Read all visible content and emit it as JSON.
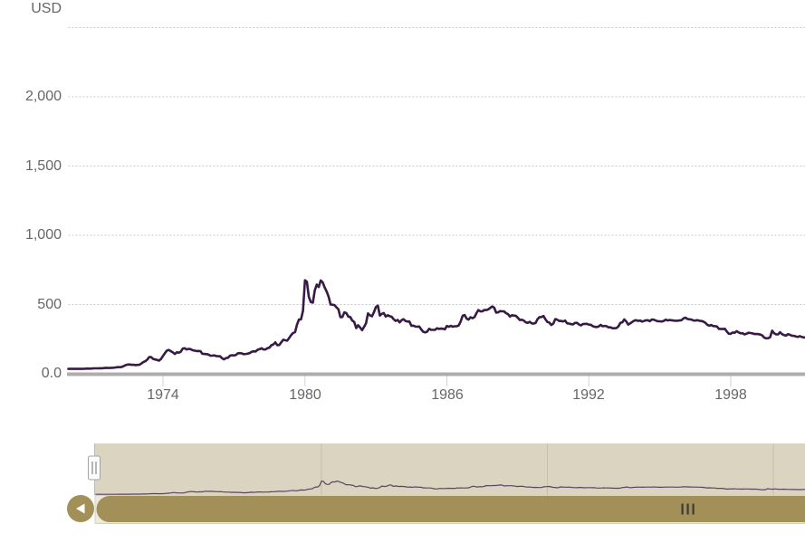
{
  "colors": {
    "series_line": "#381b45",
    "navigator_line": "#5d4263",
    "navigator_mask": "#dad4c0",
    "navigator_gridline": "#c6bfa9",
    "scrollbar_bar": "#a29058",
    "scrollbar_grip": "#3c3c30",
    "scrollbar_track": "#eceadd",
    "scrollbar_track_border": "#d6d2c0",
    "scrollbar_arrow": "#ffffff",
    "handle_fill": "#fcfcfc",
    "handle_border": "#a3a3a3",
    "handle_grip_bars": "#999999",
    "axis_label": "#666666",
    "gridline": "#c9c9c9",
    "zero_axis_line": "#adadad",
    "tick_mark": "#cdd5e0",
    "background": "#ffffff"
  },
  "chart_data": {
    "type": "line",
    "title": "",
    "ylabel": "USD",
    "xlabel": "",
    "legend": "none",
    "grid": "horizontal-dotted",
    "ylim": [
      0,
      2500
    ],
    "y_gridline_values": [
      2500,
      2000,
      1500,
      1000,
      500
    ],
    "y_tick_labels": [
      "2,000",
      "1,500",
      "1,000",
      "500",
      "0.0"
    ],
    "x_tick_years": [
      1974,
      1980,
      1986,
      1992,
      1998
    ],
    "x_tick_labels": [
      "1974",
      "1980",
      "1986",
      "1992",
      "1998"
    ],
    "x_start_year": 1970,
    "x_interval": "monthly",
    "visible_range_years": [
      1970,
      2001.2
    ],
    "series": [
      {
        "name": "USD",
        "start_year": 1970,
        "points_per_year": 12,
        "values": [
          35,
          35,
          35,
          36,
          35,
          35,
          35,
          35,
          36,
          37,
          37,
          37,
          38,
          39,
          39,
          39,
          40,
          40,
          41,
          43,
          42,
          42,
          43,
          44,
          46,
          48,
          48,
          49,
          55,
          62,
          66,
          67,
          65,
          65,
          63,
          64,
          65,
          74,
          84,
          90,
          102,
          120,
          120,
          107,
          103,
          100,
          95,
          107,
          129,
          150,
          168,
          172,
          163,
          154,
          143,
          155,
          152,
          159,
          182,
          184,
          176,
          180,
          178,
          170,
          167,
          164,
          165,
          163,
          144,
          143,
          142,
          139,
          131,
          131,
          133,
          128,
          127,
          126,
          112,
          104,
          114,
          116,
          131,
          134,
          132,
          136,
          148,
          149,
          147,
          141,
          143,
          145,
          150,
          159,
          162,
          161,
          173,
          178,
          184,
          175,
          176,
          184,
          189,
          206,
          212,
          227,
          206,
          208,
          227,
          246,
          242,
          239,
          258,
          279,
          295,
          301,
          355,
          392,
          392,
          455,
          675,
          665,
          554,
          517,
          514,
          601,
          644,
          627,
          674,
          661,
          624,
          595,
          557,
          500,
          499,
          496,
          480,
          465,
          409,
          410,
          444,
          438,
          413,
          410,
          384,
          374,
          330,
          350,
          334,
          315,
          339,
          364,
          436,
          422,
          415,
          444,
          481,
          492,
          420,
          433,
          438,
          413,
          423,
          416,
          412,
          394,
          382,
          389,
          371,
          386,
          394,
          381,
          377,
          378,
          347,
          348,
          341,
          340,
          341,
          320,
          303,
          299,
          304,
          325,
          317,
          317,
          317,
          329,
          324,
          326,
          325,
          321,
          345,
          339,
          346,
          340,
          343,
          343,
          349,
          377,
          418,
          424,
          399,
          391,
          408,
          401,
          409,
          438,
          460,
          450,
          451,
          461,
          460,
          465,
          476,
          486,
          477,
          442,
          444,
          452,
          451,
          451,
          438,
          431,
          413,
          423,
          420,
          419,
          404,
          388,
          390,
          384,
          371,
          368,
          375,
          365,
          362,
          367,
          394,
          409,
          410,
          417,
          393,
          374,
          369,
          352,
          363,
          395,
          390,
          381,
          382,
          378,
          384,
          364,
          363,
          358,
          357,
          367,
          368,
          356,
          349,
          359,
          360,
          361,
          355,
          354,
          344,
          339,
          337,
          341,
          353,
          343,
          346,
          344,
          335,
          335,
          329,
          329,
          330,
          342,
          367,
          372,
          392,
          378,
          355,
          364,
          374,
          383,
          387,
          382,
          384,
          377,
          381,
          386,
          386,
          380,
          392,
          390,
          384,
          379,
          379,
          377,
          382,
          391,
          385,
          388,
          386,
          384,
          383,
          383,
          385,
          387,
          400,
          405,
          396,
          393,
          392,
          385,
          384,
          387,
          383,
          381,
          378,
          369,
          355,
          347,
          352,
          345,
          344,
          341,
          324,
          324,
          323,
          325,
          306,
          289,
          289,
          298,
          296,
          308,
          299,
          292,
          293,
          284,
          289,
          296,
          294,
          292,
          287,
          287,
          286,
          283,
          277,
          261,
          256,
          257,
          264,
          311,
          293,
          284,
          284,
          300,
          286,
          280,
          275,
          286,
          282,
          275,
          274,
          270,
          266,
          272,
          266,
          262,
          263,
          261,
          272,
          270,
          268
        ]
      }
    ]
  },
  "navigator": {
    "grid_years": [
      1980,
      1990,
      2000
    ],
    "handle_grip_icon": "double-bar-grip",
    "range_max_value": 2500
  },
  "scrollbar": {
    "left_button_icon": "left-arrow",
    "grip_icon": "triple-bar-grip"
  }
}
